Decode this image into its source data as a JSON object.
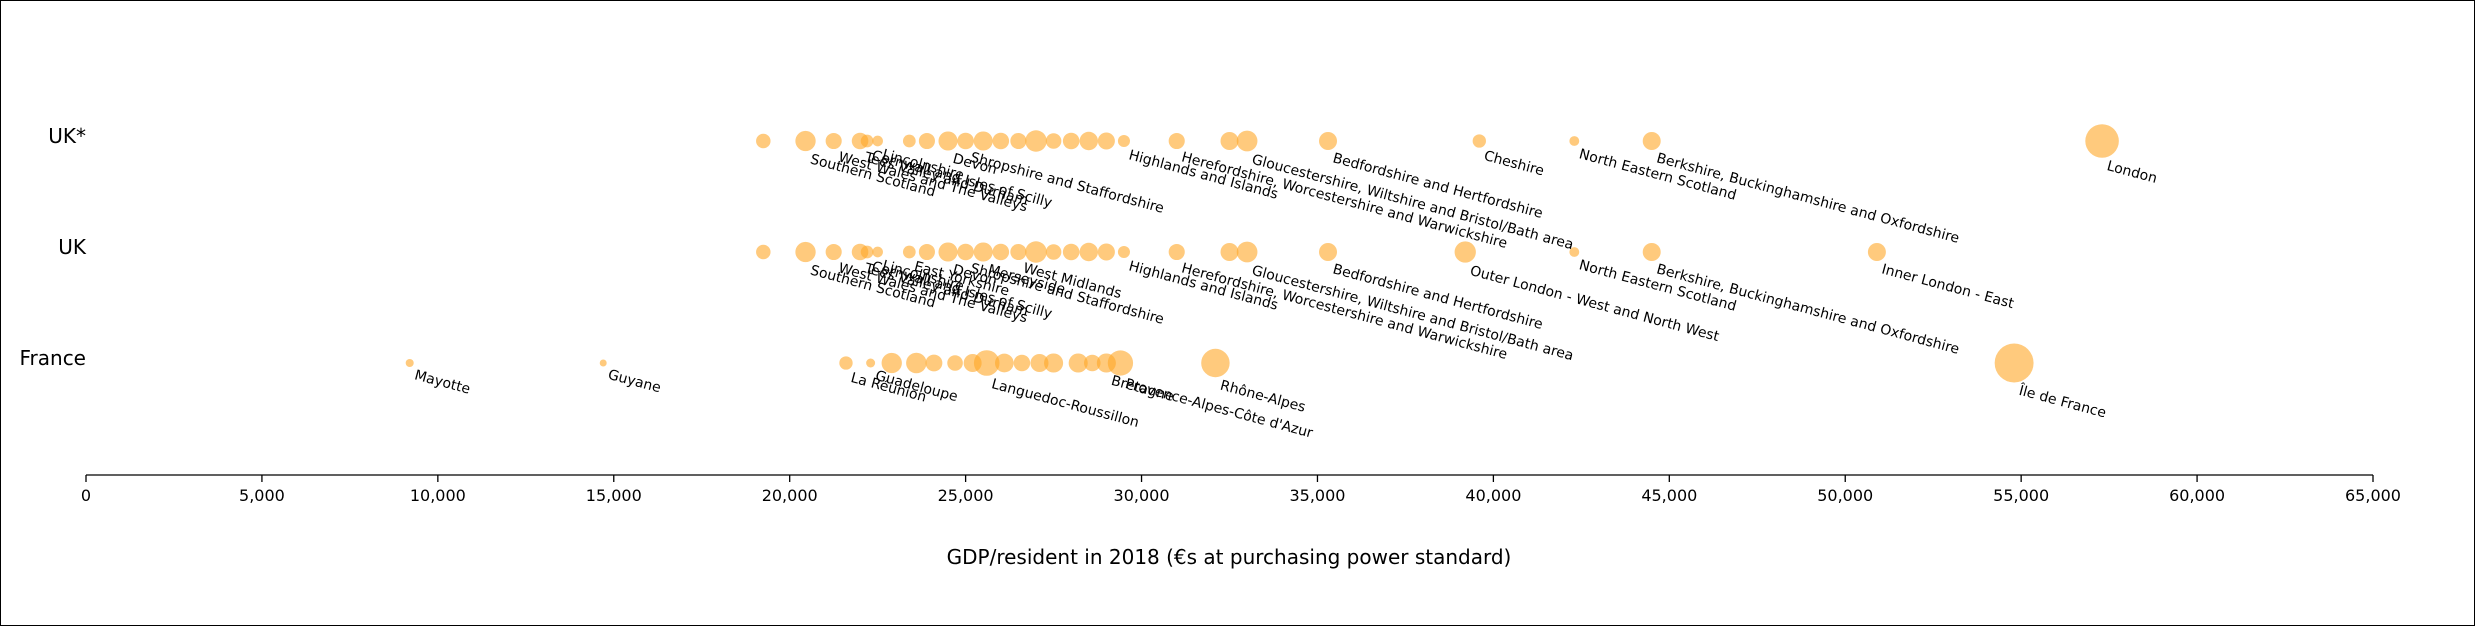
{
  "chart_data": {
    "type": "scatter",
    "xlabel": "GDP/resident in 2018 (€s at purchasing power standard)",
    "xlim": [
      0,
      65000
    ],
    "xticks": [
      0,
      5000,
      10000,
      15000,
      20000,
      25000,
      30000,
      35000,
      40000,
      45000,
      50000,
      55000,
      60000,
      65000
    ],
    "xtick_labels": [
      "0",
      "5,000",
      "10,000",
      "15,000",
      "20,000",
      "25,000",
      "30,000",
      "35,000",
      "40,000",
      "45,000",
      "50,000",
      "55,000",
      "60,000",
      "65,000"
    ],
    "categories": [
      "UK*",
      "UK",
      "France"
    ],
    "marker_color": "#ffa726",
    "series": [
      {
        "category": "UK*",
        "points": [
          {
            "x": 19250,
            "size": 2.6
          },
          {
            "x": 20450,
            "size": 5.1,
            "label": "Southern Scotland"
          },
          {
            "x": 21250,
            "size": 3.2,
            "label": "West Wales and The Valleys"
          },
          {
            "x": 22000,
            "size": 3.4,
            "label": "Tees Valley and Durham"
          },
          {
            "x": 22200,
            "size": 2.0,
            "label": "Cornwall and Isles of Scilly"
          },
          {
            "x": 22500,
            "size": 1.4,
            "label": "Lincolnshire"
          },
          {
            "x": 23400,
            "size": 2.0
          },
          {
            "x": 23900,
            "size": 3.2
          },
          {
            "x": 24500,
            "size": 4.5,
            "label": "Devon"
          },
          {
            "x": 25000,
            "size": 3.4,
            "label": "Shropshire and Staffordshire"
          },
          {
            "x": 25500,
            "size": 4.5
          },
          {
            "x": 26000,
            "size": 3.4
          },
          {
            "x": 26500,
            "size": 3.2
          },
          {
            "x": 27000,
            "size": 5.7
          },
          {
            "x": 27500,
            "size": 3.0
          },
          {
            "x": 28000,
            "size": 3.4
          },
          {
            "x": 28500,
            "size": 4.2
          },
          {
            "x": 29000,
            "size": 3.6
          },
          {
            "x": 29500,
            "size": 1.8,
            "label": "Highlands and Islands"
          },
          {
            "x": 31000,
            "size": 3.2,
            "label": "Herefordshire, Worcestershire and Warwickshire"
          },
          {
            "x": 32500,
            "size": 4.0
          },
          {
            "x": 33000,
            "size": 5.3,
            "label": "Gloucestershire, Wiltshire and Bristol/Bath area"
          },
          {
            "x": 35300,
            "size": 4.0,
            "label": "Bedfordshire and Hertfordshire"
          },
          {
            "x": 39600,
            "size": 2.2,
            "label": "Cheshire"
          },
          {
            "x": 42300,
            "size": 1.2,
            "label": "North Eastern Scotland"
          },
          {
            "x": 44500,
            "size": 4.0,
            "label": "Berkshire, Buckinghamshire and Oxfordshire"
          },
          {
            "x": 57300,
            "size": 13.9,
            "label": "London"
          }
        ]
      },
      {
        "category": "UK",
        "points": [
          {
            "x": 19250,
            "size": 2.6
          },
          {
            "x": 20450,
            "size": 5.1,
            "label": "Southern Scotland"
          },
          {
            "x": 21250,
            "size": 3.2,
            "label": "West Wales and The Valleys"
          },
          {
            "x": 22000,
            "size": 3.4,
            "label": "Tees Valley and Durham"
          },
          {
            "x": 22200,
            "size": 2.0,
            "label": "Cornwall and Isles of Scilly"
          },
          {
            "x": 22500,
            "size": 1.4,
            "label": "Lincolnshire"
          },
          {
            "x": 23400,
            "size": 2.0,
            "label": "East Yorkshire"
          },
          {
            "x": 23900,
            "size": 3.2
          },
          {
            "x": 24500,
            "size": 4.5,
            "label": "Devon"
          },
          {
            "x": 25000,
            "size": 3.4,
            "label": "Shropshire and Staffordshire"
          },
          {
            "x": 25500,
            "size": 4.5,
            "label": "Merseyside"
          },
          {
            "x": 26000,
            "size": 3.4
          },
          {
            "x": 26500,
            "size": 3.2,
            "label": "West Midlands"
          },
          {
            "x": 27000,
            "size": 5.7
          },
          {
            "x": 27500,
            "size": 3.0
          },
          {
            "x": 28000,
            "size": 3.4
          },
          {
            "x": 28500,
            "size": 4.2
          },
          {
            "x": 29000,
            "size": 3.6
          },
          {
            "x": 29500,
            "size": 1.8,
            "label": "Highlands and Islands"
          },
          {
            "x": 31000,
            "size": 3.2,
            "label": "Herefordshire, Worcestershire and Warwickshire"
          },
          {
            "x": 32500,
            "size": 4.0
          },
          {
            "x": 33000,
            "size": 5.3,
            "label": "Gloucestershire, Wiltshire and Bristol/Bath area"
          },
          {
            "x": 35300,
            "size": 4.0,
            "label": "Bedfordshire and Hertfordshire"
          },
          {
            "x": 39200,
            "size": 5.6,
            "label": "Outer London - West and North West"
          },
          {
            "x": 42300,
            "size": 1.2,
            "label": "North Eastern Scotland"
          },
          {
            "x": 44500,
            "size": 4.0,
            "label": "Berkshire, Buckinghamshire and Oxfordshire"
          },
          {
            "x": 50900,
            "size": 4.0,
            "label": "Inner London - East"
          }
        ]
      },
      {
        "category": "France",
        "points": [
          {
            "x": 9200,
            "size": 0.8,
            "label": "Mayotte"
          },
          {
            "x": 14700,
            "size": 0.6,
            "label": "Guyane"
          },
          {
            "x": 21600,
            "size": 2.2,
            "label": "La Réunion"
          },
          {
            "x": 22300,
            "size": 1.0,
            "label": "Guadeloupe"
          },
          {
            "x": 22900,
            "size": 5.1
          },
          {
            "x": 23600,
            "size": 5.2
          },
          {
            "x": 24100,
            "size": 3.5
          },
          {
            "x": 24700,
            "size": 3.0
          },
          {
            "x": 25200,
            "size": 4.0
          },
          {
            "x": 25600,
            "size": 8.1,
            "label": "Languedoc-Roussillon"
          },
          {
            "x": 26100,
            "size": 4.3
          },
          {
            "x": 26600,
            "size": 3.4
          },
          {
            "x": 27100,
            "size": 4.0
          },
          {
            "x": 27500,
            "size": 4.5
          },
          {
            "x": 28200,
            "size": 4.5
          },
          {
            "x": 28600,
            "size": 3.4
          },
          {
            "x": 29000,
            "size": 4.5,
            "label": "Bretagne"
          },
          {
            "x": 29400,
            "size": 7.9,
            "label": "Provence-Alpes-Côte d'Azur"
          },
          {
            "x": 32100,
            "size": 10.0,
            "label": "Rhône-Alpes"
          },
          {
            "x": 54800,
            "size": 18.7,
            "label": "Île de France"
          }
        ]
      }
    ]
  }
}
